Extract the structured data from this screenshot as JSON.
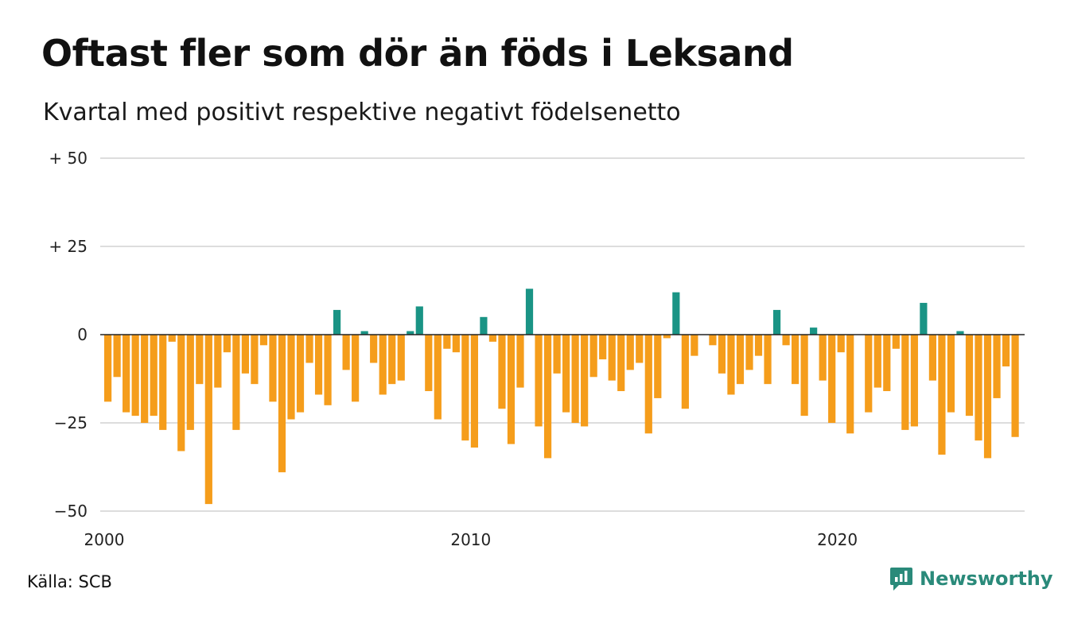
{
  "title": "Oftast fler som dör än föds i Leksand",
  "subtitle": "Kvartal med positivt respektive negativt födelsenetto",
  "source": "Källa: SCB",
  "brand": "Newsworthy",
  "colors": {
    "positive": "#1a9485",
    "negative": "#f59d1b",
    "grid": "#dddddd",
    "zero_line": "#222222",
    "brand": "#2a8a7a"
  },
  "chart_data": {
    "type": "bar",
    "x_start": "2000 Q1",
    "y_ticks": [
      {
        "value": 50,
        "label": "+ 50"
      },
      {
        "value": 25,
        "label": "+ 25"
      },
      {
        "value": 0,
        "label": "0"
      },
      {
        "value": -25,
        "label": "−25"
      },
      {
        "value": -50,
        "label": "−50"
      }
    ],
    "x_ticks": [
      {
        "year": 2000,
        "label": "2000"
      },
      {
        "year": 2010,
        "label": "2010"
      },
      {
        "year": 2020,
        "label": "2020"
      }
    ],
    "ylim": [
      -50,
      50
    ],
    "values": [
      -19,
      -12,
      -22,
      -23,
      -25,
      -23,
      -27,
      -2,
      -33,
      -27,
      -14,
      -48,
      -15,
      -5,
      -27,
      -11,
      -14,
      -3,
      -19,
      -39,
      -24,
      -22,
      -8,
      -17,
      -20,
      7,
      -10,
      -19,
      1,
      -8,
      -17,
      -14,
      -13,
      1,
      8,
      -16,
      -24,
      -4,
      -5,
      -30,
      -32,
      5,
      -2,
      -21,
      -31,
      -15,
      13,
      -26,
      -35,
      -11,
      -22,
      -25,
      -26,
      -12,
      -7,
      -13,
      -16,
      -10,
      -8,
      -28,
      -18,
      -1,
      12,
      -21,
      -6,
      0,
      -3,
      -11,
      -17,
      -14,
      -10,
      -6,
      -14,
      7,
      -3,
      -14,
      -23,
      2,
      -13,
      -25,
      -5,
      -28,
      0,
      -22,
      -15,
      -16,
      -4,
      -27,
      -26,
      9,
      -13,
      -34,
      -22,
      1,
      -23,
      -30,
      -35,
      -18,
      -9,
      -29
    ]
  }
}
